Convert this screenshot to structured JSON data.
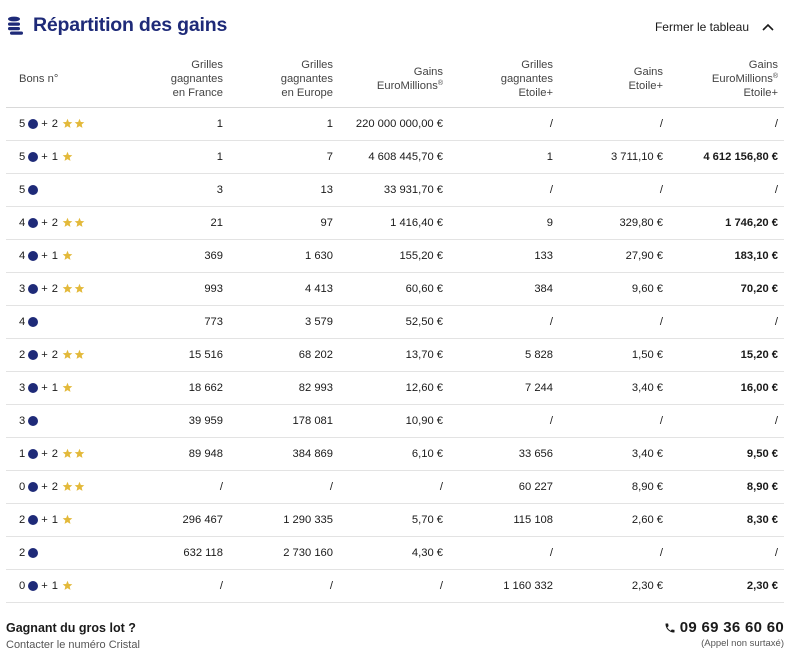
{
  "header": {
    "title": "Répartition des gains",
    "close_label": "Fermer le tableau"
  },
  "table": {
    "columns": [
      {
        "lines": [
          "Bons n°"
        ]
      },
      {
        "lines": [
          "Grilles",
          "gagnantes",
          "en France"
        ]
      },
      {
        "lines": [
          "Grilles",
          "gagnantes",
          "en Europe"
        ]
      },
      {
        "lines": [
          "Gains",
          "EuroMillions®"
        ]
      },
      {
        "lines": [
          "Grilles",
          "gagnantes",
          "Etoile+"
        ]
      },
      {
        "lines": [
          "Gains",
          "Etoile+"
        ]
      },
      {
        "lines": [
          "Gains",
          "EuroMillions®",
          "Etoile+"
        ]
      }
    ],
    "rows": [
      {
        "balls": "5",
        "stars": "2",
        "france": "1",
        "europe": "1",
        "gains_em": "220 000 000,00 €",
        "etoile_grids": "/",
        "gains_etoile": "/",
        "gains_total": "/"
      },
      {
        "balls": "5",
        "stars": "1",
        "france": "1",
        "europe": "7",
        "gains_em": "4 608 445,70 €",
        "etoile_grids": "1",
        "gains_etoile": "3 711,10 €",
        "gains_total": "4 612 156,80 €"
      },
      {
        "balls": "5",
        "stars": "",
        "france": "3",
        "europe": "13",
        "gains_em": "33 931,70 €",
        "etoile_grids": "/",
        "gains_etoile": "/",
        "gains_total": "/"
      },
      {
        "balls": "4",
        "stars": "2",
        "france": "21",
        "europe": "97",
        "gains_em": "1 416,40 €",
        "etoile_grids": "9",
        "gains_etoile": "329,80 €",
        "gains_total": "1 746,20 €"
      },
      {
        "balls": "4",
        "stars": "1",
        "france": "369",
        "europe": "1 630",
        "gains_em": "155,20 €",
        "etoile_grids": "133",
        "gains_etoile": "27,90 €",
        "gains_total": "183,10 €"
      },
      {
        "balls": "3",
        "stars": "2",
        "france": "993",
        "europe": "4 413",
        "gains_em": "60,60 €",
        "etoile_grids": "384",
        "gains_etoile": "9,60 €",
        "gains_total": "70,20 €"
      },
      {
        "balls": "4",
        "stars": "",
        "france": "773",
        "europe": "3 579",
        "gains_em": "52,50 €",
        "etoile_grids": "/",
        "gains_etoile": "/",
        "gains_total": "/"
      },
      {
        "balls": "2",
        "stars": "2",
        "france": "15 516",
        "europe": "68 202",
        "gains_em": "13,70 €",
        "etoile_grids": "5 828",
        "gains_etoile": "1,50 €",
        "gains_total": "15,20 €"
      },
      {
        "balls": "3",
        "stars": "1",
        "france": "18 662",
        "europe": "82 993",
        "gains_em": "12,60 €",
        "etoile_grids": "7 244",
        "gains_etoile": "3,40 €",
        "gains_total": "16,00 €"
      },
      {
        "balls": "3",
        "stars": "",
        "france": "39 959",
        "europe": "178 081",
        "gains_em": "10,90 €",
        "etoile_grids": "/",
        "gains_etoile": "/",
        "gains_total": "/"
      },
      {
        "balls": "1",
        "stars": "2",
        "france": "89 948",
        "europe": "384 869",
        "gains_em": "6,10 €",
        "etoile_grids": "33 656",
        "gains_etoile": "3,40 €",
        "gains_total": "9,50 €"
      },
      {
        "balls": "0",
        "stars": "2",
        "france": "/",
        "europe": "/",
        "gains_em": "/",
        "etoile_grids": "60 227",
        "gains_etoile": "8,90 €",
        "gains_total": "8,90 €"
      },
      {
        "balls": "2",
        "stars": "1",
        "france": "296 467",
        "europe": "1 290 335",
        "gains_em": "5,70 €",
        "etoile_grids": "115 108",
        "gains_etoile": "2,60 €",
        "gains_total": "8,30 €"
      },
      {
        "balls": "2",
        "stars": "",
        "france": "632 118",
        "europe": "2 730 160",
        "gains_em": "4,30 €",
        "etoile_grids": "/",
        "gains_etoile": "/",
        "gains_total": "/"
      },
      {
        "balls": "0",
        "stars": "1",
        "france": "/",
        "europe": "/",
        "gains_em": "/",
        "etoile_grids": "1 160 332",
        "gains_etoile": "2,30 €",
        "gains_total": "2,30 €"
      }
    ]
  },
  "footer": {
    "title": "Gagnant du gros lot ?",
    "subtitle": "Contacter le numéro Cristal",
    "phone": "09 69 36 60 60",
    "phone_note": "(Appel non surtaxé)"
  },
  "icons": {
    "title_icon": "coins-stack-icon",
    "toggle_icon": "chevron-up-icon",
    "ball_icon": "ball-icon",
    "star_icon": "star-icon",
    "phone_icon": "phone-icon"
  },
  "colors": {
    "brand_blue": "#1e2a78",
    "star_gold": "#e3b93a",
    "divider": "#e3e3e3"
  }
}
